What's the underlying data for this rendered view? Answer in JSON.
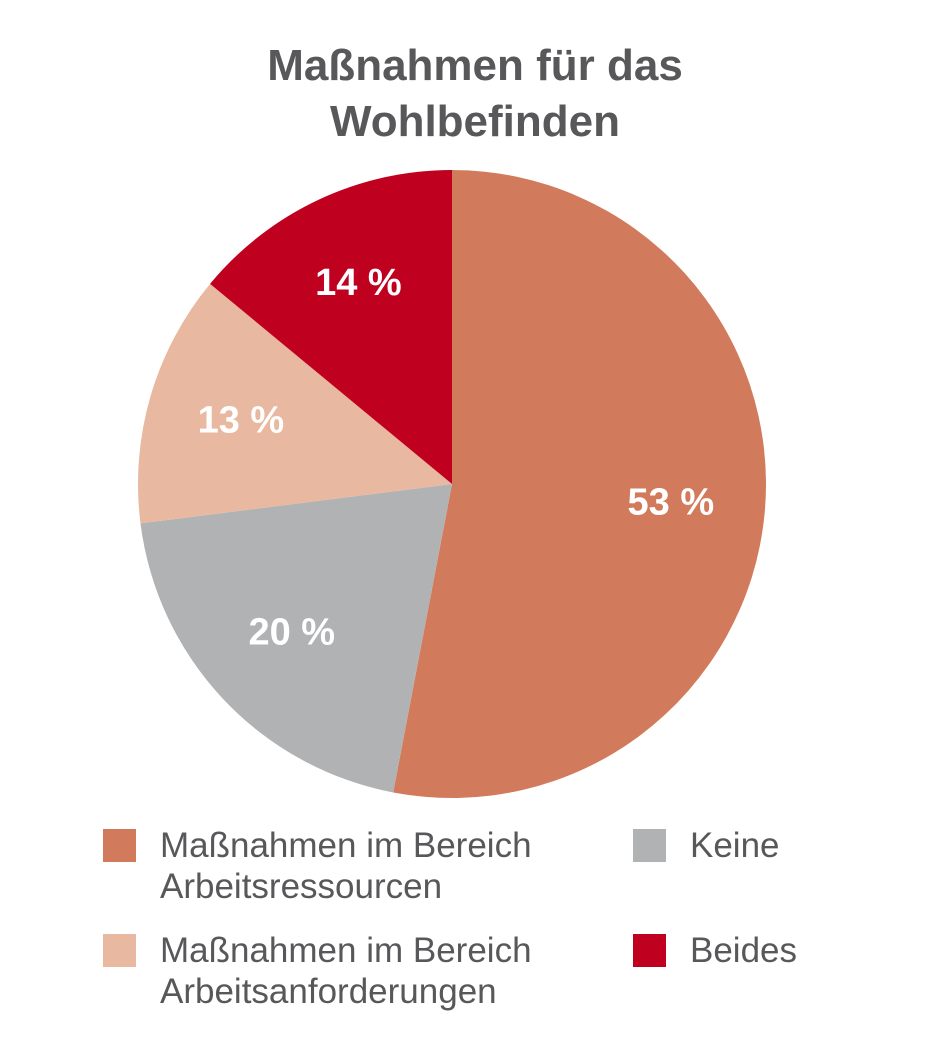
{
  "chart_data": {
    "type": "pie",
    "title": "Maßnahmen für das Wohlbefinden",
    "categories": [
      "Maßnahmen im Bereich Arbeitsressourcen",
      "Keine",
      "Maßnahmen im Bereich Arbeitsanforderungen",
      "Beides"
    ],
    "values": [
      53,
      20,
      13,
      14
    ],
    "value_labels": [
      "53 %",
      "20 %",
      "13 %",
      "14 %"
    ],
    "colors": [
      "#d27b5c",
      "#b1b2b4",
      "#e8b8a0",
      "#c0001f"
    ]
  }
}
